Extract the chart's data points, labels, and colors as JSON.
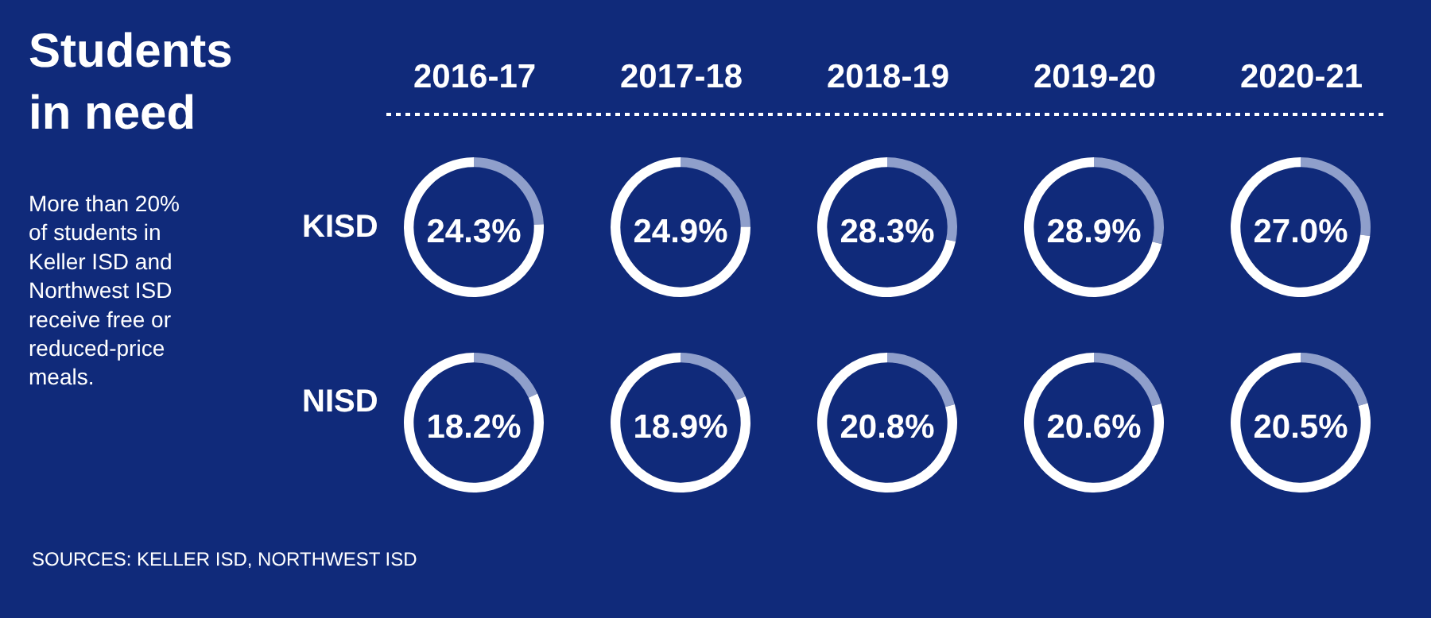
{
  "chart_data": [
    {
      "type": "other",
      "title": "Students in need",
      "subtitle": "More than 20% of students in Keller ISD and Northwest ISD receive free or reduced-price meals.",
      "annotations": [
        "2016-17",
        "2017-18",
        "2018-19",
        "2019-20",
        "2020-21",
        "KISD",
        "NISD",
        "SOURCES: KELLER ISD, NORTHWEST ISD"
      ]
    },
    {
      "type": "donut",
      "title": "24.3%",
      "categories": [
        null,
        null
      ],
      "values": [
        24.3,
        75.7
      ],
      "colors": [
        "#8f9fcb",
        "#ffffff"
      ]
    },
    {
      "type": "donut",
      "title": "24.9%",
      "categories": [
        null,
        null
      ],
      "values": [
        24.9,
        75.1
      ],
      "colors": [
        "#8f9fcb",
        "#ffffff"
      ]
    },
    {
      "type": "donut",
      "title": "28.3%",
      "categories": [
        null,
        null
      ],
      "values": [
        28.3,
        71.7
      ],
      "colors": [
        "#8f9fcb",
        "#ffffff"
      ]
    },
    {
      "type": "donut",
      "title": "28.9%",
      "categories": [
        null,
        null
      ],
      "values": [
        28.9,
        71.1
      ],
      "colors": [
        "#8f9fcb",
        "#ffffff"
      ]
    },
    {
      "type": "donut",
      "title": "27.0%",
      "categories": [
        null,
        null
      ],
      "values": [
        27.0,
        73.0
      ],
      "colors": [
        "#8f9fcb",
        "#ffffff"
      ]
    },
    {
      "type": "donut",
      "title": "18.2%",
      "categories": [
        null,
        null
      ],
      "values": [
        18.2,
        81.8
      ],
      "colors": [
        "#8f9fcb",
        "#ffffff"
      ]
    },
    {
      "type": "donut",
      "title": "18.9%",
      "categories": [
        null,
        null
      ],
      "values": [
        18.9,
        81.1
      ],
      "colors": [
        "#8f9fcb",
        "#ffffff"
      ]
    },
    {
      "type": "donut",
      "title": "20.8%",
      "categories": [
        null,
        null
      ],
      "values": [
        20.8,
        79.2
      ],
      "colors": [
        "#8f9fcb",
        "#ffffff"
      ]
    },
    {
      "type": "donut",
      "title": "20.6%",
      "categories": [
        null,
        null
      ],
      "values": [
        20.6,
        79.4
      ],
      "colors": [
        "#8f9fcb",
        "#ffffff"
      ]
    },
    {
      "type": "donut",
      "title": "20.5%",
      "categories": [
        null,
        null
      ],
      "values": [
        20.5,
        79.5
      ],
      "colors": [
        "#8f9fcb",
        "#ffffff"
      ]
    }
  ]
}
